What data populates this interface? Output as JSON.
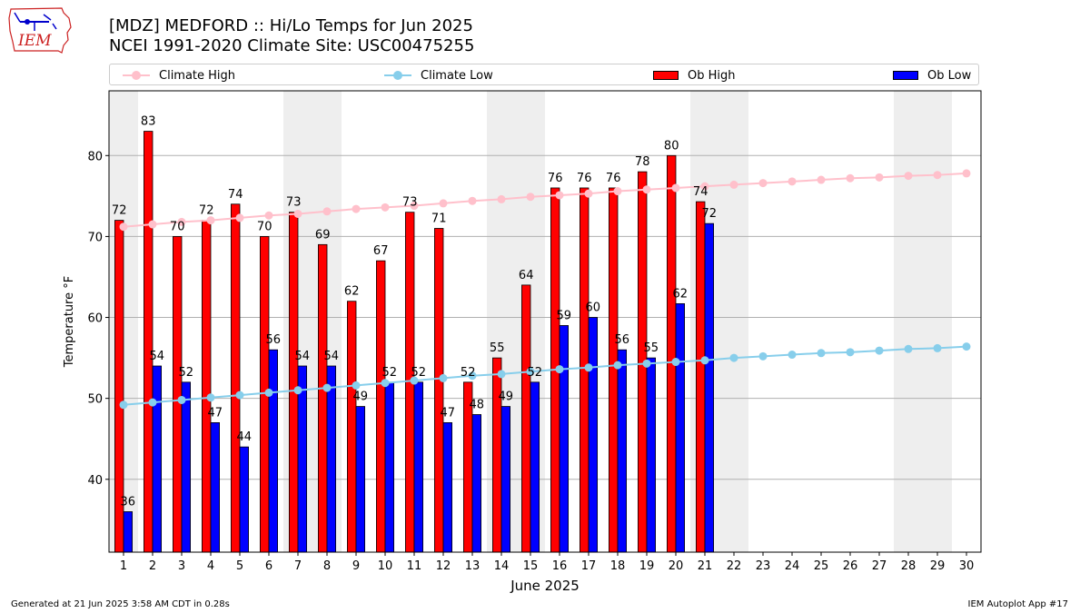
{
  "header": {
    "title_line1": "[MDZ] MEDFORD :: Hi/Lo Temps for Jun 2025",
    "title_line2": "NCEI 1991-2020 Climate Site: USC00475255"
  },
  "logo": {
    "text": "IEM",
    "icon": "iowa-state-map-logo",
    "color": "#cc2222"
  },
  "legend": {
    "placement": "top",
    "items": [
      {
        "label": "Climate High",
        "color": "#ffc0cb",
        "kind": "line"
      },
      {
        "label": "Climate Low",
        "color": "#87ceeb",
        "kind": "line"
      },
      {
        "label": "Ob High",
        "color": "#ff0000",
        "kind": "bar"
      },
      {
        "label": "Ob Low",
        "color": "#0000ff",
        "kind": "bar"
      }
    ]
  },
  "footer": {
    "left": "Generated at 21 Jun 2025 3:58 AM CDT in 0.28s",
    "right": "IEM Autoplot App #17"
  },
  "chart_data": {
    "type": "bar",
    "xlabel": "June 2025",
    "ylabel": "Temperature °F",
    "ylim": [
      31,
      88
    ],
    "xlim": [
      0.5,
      30.5
    ],
    "yticks": [
      40,
      50,
      60,
      70,
      80
    ],
    "grid": true,
    "weekend_shading_days": [
      1,
      7,
      8,
      14,
      15,
      21,
      22,
      28,
      29
    ],
    "days": [
      1,
      2,
      3,
      4,
      5,
      6,
      7,
      8,
      9,
      10,
      11,
      12,
      13,
      14,
      15,
      16,
      17,
      18,
      19,
      20,
      21,
      22,
      23,
      24,
      25,
      26,
      27,
      28,
      29,
      30
    ],
    "series": [
      {
        "name": "Ob High",
        "kind": "bar",
        "color": "#ff0000",
        "values": [
          72,
          83,
          70,
          72,
          74,
          70,
          73,
          69,
          62,
          67,
          73,
          71,
          52,
          55,
          64,
          76,
          76,
          76,
          78,
          80,
          74.3
        ]
      },
      {
        "name": "Ob Low",
        "kind": "bar",
        "color": "#0000ff",
        "values": [
          36,
          54,
          52,
          47,
          44,
          56,
          54,
          54,
          49,
          52,
          52,
          47,
          48,
          49,
          52,
          59,
          60,
          56,
          55,
          61.7,
          71.6
        ]
      },
      {
        "name": "Climate High",
        "kind": "line",
        "color": "#ffc0cb",
        "values": [
          71.2,
          71.5,
          71.8,
          72.0,
          72.3,
          72.6,
          72.8,
          73.1,
          73.4,
          73.6,
          73.8,
          74.1,
          74.4,
          74.6,
          74.9,
          75.1,
          75.3,
          75.6,
          75.8,
          76.0,
          76.2,
          76.4,
          76.6,
          76.8,
          77.0,
          77.2,
          77.3,
          77.5,
          77.6,
          77.8
        ]
      },
      {
        "name": "Climate Low",
        "kind": "line",
        "color": "#87ceeb",
        "values": [
          49.2,
          49.5,
          49.8,
          50.1,
          50.4,
          50.7,
          51.0,
          51.3,
          51.6,
          51.9,
          52.2,
          52.5,
          52.8,
          53.0,
          53.3,
          53.6,
          53.8,
          54.1,
          54.3,
          54.5,
          54.7,
          55.0,
          55.2,
          55.4,
          55.6,
          55.7,
          55.9,
          56.1,
          56.2,
          56.4
        ]
      }
    ],
    "high_labels": [
      "72",
      "83",
      "70",
      "72",
      "74",
      "70",
      "73",
      "69",
      "62",
      "67",
      "73",
      "71",
      "52",
      "55",
      "64",
      "76",
      "76",
      "76",
      "78",
      "80",
      "74"
    ],
    "low_labels": [
      "36",
      "54",
      "52",
      "47",
      "44",
      "56",
      "54",
      "54",
      "49",
      "52",
      "52",
      "47",
      "48",
      "49",
      "52",
      "59",
      "60",
      "56",
      "55",
      "62",
      "72"
    ]
  }
}
